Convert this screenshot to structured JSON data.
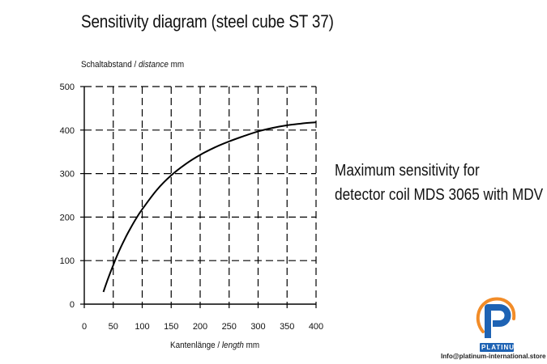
{
  "title": "Sensitivity diagram (steel cube ST 37)",
  "note": {
    "line1": "Maximum sensitivity for",
    "line2": "detector coil MDS 3065 with MDV"
  },
  "brand": {
    "name": "PLATINUM",
    "contact": "Info@platinum-international.store",
    "colors": {
      "primary": "#1e63b4",
      "accent": "#f28c28"
    }
  },
  "chart_data": {
    "type": "line",
    "title": "",
    "ylabel": {
      "de": "Schaltabstand / ",
      "en": "distance",
      "unit": "  mm"
    },
    "xlabel": {
      "de": "Kantenlänge / ",
      "en": "length",
      "unit": "  mm"
    },
    "xlim": [
      0,
      400
    ],
    "ylim": [
      0,
      500
    ],
    "xticks": [
      0,
      50,
      100,
      150,
      200,
      250,
      300,
      350,
      400
    ],
    "yticks": [
      0,
      100,
      200,
      300,
      400,
      500
    ],
    "grid": "dashed",
    "series": [
      {
        "x": [
          33,
          40,
          50,
          60,
          70,
          80,
          90,
          100,
          125,
          150,
          175,
          200,
          225,
          250,
          275,
          300,
          325,
          350,
          375,
          400
        ],
        "y": [
          28,
          55,
          90,
          122,
          150,
          175,
          198,
          218,
          262,
          296,
          322,
          343,
          360,
          374,
          386,
          397,
          405,
          411,
          415,
          418
        ],
        "color": "#000000"
      }
    ]
  }
}
